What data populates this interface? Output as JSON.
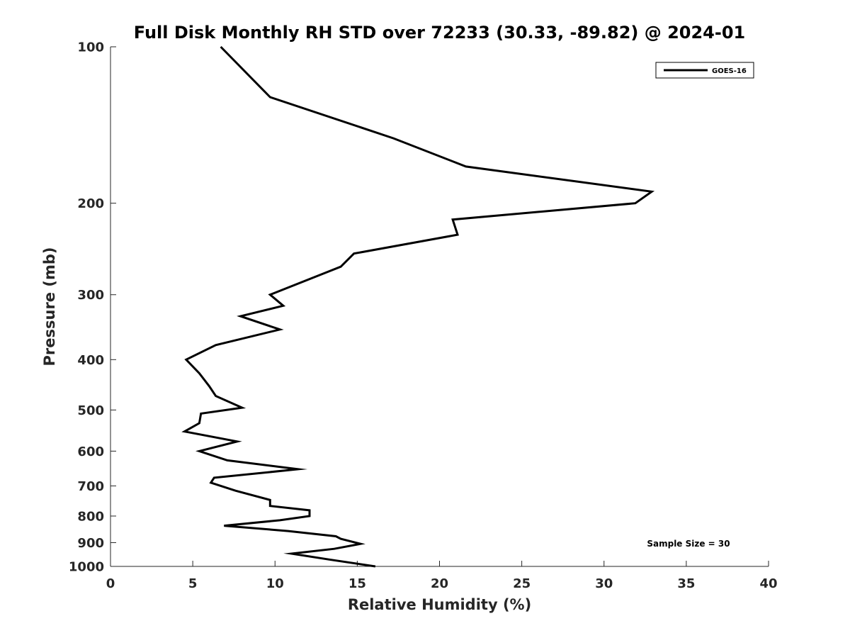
{
  "chart_data": {
    "type": "line",
    "title": "Full Disk Monthly RH STD over 72233 (30.33, -89.82) @ 2024-01",
    "xlabel": "Relative Humidity (%)",
    "ylabel": "Pressure (mb)",
    "xlim": [
      0,
      40
    ],
    "ylim": [
      100,
      1000
    ],
    "y_scale": "log",
    "y_reversed": true,
    "xticks": [
      "0",
      "5",
      "10",
      "15",
      "20",
      "25",
      "30",
      "35",
      "40"
    ],
    "yticks": [
      "100",
      "200",
      "300",
      "400",
      "500",
      "600",
      "700",
      "800",
      "900",
      "1000"
    ],
    "grid": false,
    "legend_position": "top-right",
    "annotation": "Sample Size = 30",
    "series": [
      {
        "name": "GOES-16",
        "color": "#000000",
        "x": [
          6.7,
          9.7,
          17.2,
          21.6,
          32.9,
          31.9,
          20.8,
          21.1,
          14.8,
          14.0,
          9.7,
          10.5,
          7.9,
          10.3,
          6.4,
          4.6,
          5.4,
          6.0,
          6.4,
          8.0,
          5.5,
          5.4,
          4.5,
          7.7,
          5.4,
          7.1,
          11.4,
          6.3,
          6.1,
          7.6,
          9.7,
          9.7,
          12.1,
          12.1,
          10.3,
          6.9,
          10.8,
          13.7,
          14.0,
          15.2,
          13.6,
          11.0,
          13.3,
          16.1
        ],
        "y": [
          100,
          125,
          150,
          170,
          190,
          200,
          215,
          230,
          250,
          265,
          300,
          315,
          330,
          350,
          375,
          400,
          425,
          450,
          470,
          495,
          508,
          530,
          550,
          575,
          600,
          625,
          650,
          675,
          690,
          715,
          745,
          765,
          780,
          800,
          815,
          835,
          855,
          875,
          885,
          905,
          925,
          945,
          970,
          1000
        ]
      }
    ]
  }
}
